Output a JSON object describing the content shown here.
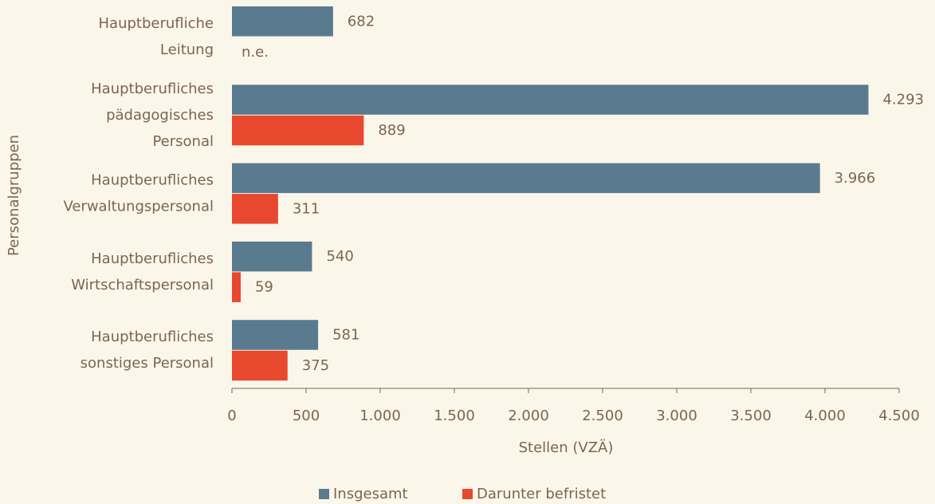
{
  "chart_data": {
    "type": "bar",
    "orientation": "horizontal",
    "xlabel": "Stellen (VZÄ)",
    "ylabel": "Personalgruppen",
    "categories": [
      [
        "Hauptberufliche",
        "Leitung"
      ],
      [
        "Hauptberufliches",
        "pädagogisches",
        "Personal"
      ],
      [
        "Hauptberufliches",
        "Verwaltungspersonal"
      ],
      [
        "Hauptberufliches",
        "Wirtschaftspersonal"
      ],
      [
        "Hauptberufliches",
        "sonstiges Personal"
      ]
    ],
    "series": [
      {
        "name": "Insgesamt",
        "color": "#5a7b8f",
        "values": [
          682,
          4293,
          3966,
          540,
          581
        ],
        "value_labels": [
          "682",
          "4.293",
          "3.966",
          "540",
          "581"
        ]
      },
      {
        "name": "Darunter befristet",
        "color": "#e8482d",
        "values": [
          null,
          889,
          311,
          59,
          375
        ],
        "value_labels": [
          "n.e.",
          "889",
          "311",
          "59",
          "375"
        ]
      }
    ],
    "xlim": [
      0,
      4500
    ],
    "xticks": [
      0,
      500,
      {
        "value": 1000,
        "label": "1.000"
      },
      {
        "value": 1500,
        "label": "1.500"
      },
      {
        "value": 2000,
        "label": "2.000"
      },
      {
        "value": 2500,
        "label": "2.500"
      },
      {
        "value": 3000,
        "label": "3.000"
      },
      {
        "value": 3500,
        "label": "3.500"
      },
      {
        "value": 4000,
        "label": "4.000"
      },
      {
        "value": 4500,
        "label": "4.500"
      }
    ],
    "legend": "bottom"
  }
}
